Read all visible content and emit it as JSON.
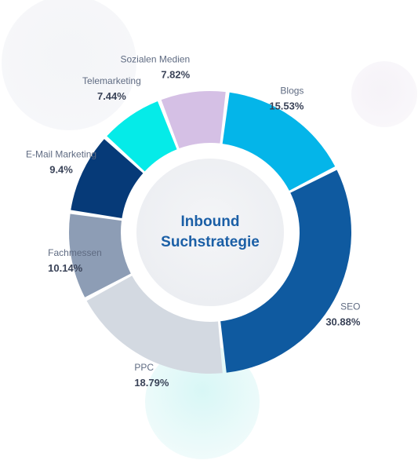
{
  "chart_data": {
    "type": "pie",
    "title": "Inbound Suchstrategie",
    "title_lines": [
      "Inbound",
      "Suchstrategie"
    ],
    "segments": [
      {
        "name": "SEO",
        "value": 30.88,
        "label": "30.88%",
        "color": "#0f5aa0"
      },
      {
        "name": "PPC",
        "value": 18.79,
        "label": "18.79%",
        "color": "#d3d9e1"
      },
      {
        "name": "Fachmessen",
        "value": 10.14,
        "label": "10.14%",
        "color": "#8d9db5"
      },
      {
        "name": "E-Mail Marketing",
        "value": 9.4,
        "label": "9.4%",
        "color": "#063a78"
      },
      {
        "name": "Telemarketing",
        "value": 7.44,
        "label": "7.44%",
        "color": "#05ebe8"
      },
      {
        "name": "Sozialen Medien",
        "value": 7.82,
        "label": "7.82%",
        "color": "#d5c0e5"
      },
      {
        "name": "Blogs",
        "value": 15.53,
        "label": "15.53%",
        "color": "#04b5e9"
      }
    ],
    "legend": "none",
    "grid": false
  }
}
